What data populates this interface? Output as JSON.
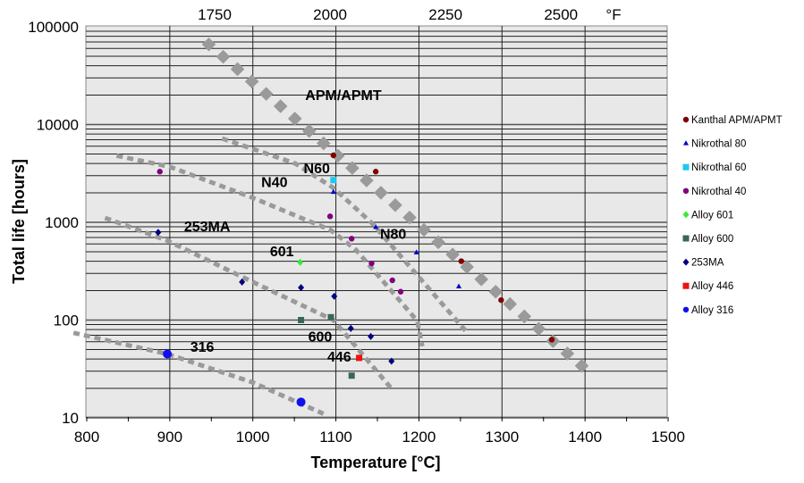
{
  "chart_data": {
    "type": "scatter",
    "title": "",
    "xlabel": "Temperature [°C]",
    "ylabel": "Total life [hours]",
    "xlim": [
      800,
      1500
    ],
    "ylim": [
      10,
      100000
    ],
    "yscale": "log",
    "grid": true,
    "x_ticks": [
      "800",
      "900",
      "1000",
      "1100",
      "1200",
      "1300",
      "1400",
      "1500"
    ],
    "y_ticks": [
      "10",
      "100",
      "1000",
      "10000",
      "100000"
    ],
    "secondary_x": {
      "unit_label": "°F",
      "ticks": [
        {
          "label": "1750",
          "celsius": 954
        },
        {
          "label": "2000",
          "celsius": 1093
        },
        {
          "label": "2250",
          "celsius": 1232
        },
        {
          "label": "2500",
          "celsius": 1371
        }
      ]
    },
    "legend_position": "right",
    "series": [
      {
        "name": "Kanthal APM/APMT",
        "color": "#800000",
        "marker": "circle",
        "points": [
          [
            1097,
            4840
          ],
          [
            1148,
            3300
          ],
          [
            1251,
            400
          ],
          [
            1299,
            160
          ],
          [
            1360,
            63
          ]
        ]
      },
      {
        "name": "Nikrothal 80",
        "color": "#0000cc",
        "marker": "triangle",
        "points": [
          [
            1097,
            2040
          ],
          [
            1148,
            890
          ],
          [
            1197,
            490
          ],
          [
            1248,
            220
          ]
        ]
      },
      {
        "name": "Nikrothal 60",
        "color": "#1ec8f0",
        "marker": "square",
        "points": [
          [
            1097,
            2700
          ]
        ]
      },
      {
        "name": "Nikrothal 40",
        "color": "#800080",
        "marker": "circle",
        "points": [
          [
            888,
            3300
          ],
          [
            1093,
            1150
          ],
          [
            1119,
            680
          ],
          [
            1143,
            380
          ],
          [
            1168,
            255
          ],
          [
            1178,
            195
          ]
        ]
      },
      {
        "name": "Alloy 601",
        "color": "#33ee33",
        "marker": "diamond",
        "points": [
          [
            1057,
            390
          ]
        ]
      },
      {
        "name": "Alloy 600",
        "color": "#3a6658",
        "marker": "square",
        "points": [
          [
            1058,
            100
          ],
          [
            1094,
            107
          ],
          [
            1119,
            27
          ]
        ]
      },
      {
        "name": "253MA",
        "color": "#000080",
        "marker": "diamond",
        "points": [
          [
            886,
            790
          ],
          [
            987,
            245
          ],
          [
            1058,
            215
          ],
          [
            1098,
            175
          ],
          [
            1118,
            82
          ],
          [
            1142,
            68
          ],
          [
            1167,
            38
          ]
        ]
      },
      {
        "name": "Alloy 446",
        "color": "#ee1111",
        "marker": "square",
        "points": [
          [
            1128,
            41
          ]
        ]
      },
      {
        "name": "Alloy 316",
        "color": "#1010ee",
        "marker": "bigcircle",
        "points": [
          [
            897,
            45
          ],
          [
            1058,
            14.5
          ]
        ]
      }
    ],
    "trend_lines": [
      {
        "name": "APM/APMT",
        "style": "diamonds",
        "points": [
          [
            947,
            66000
          ],
          [
            1396,
            34
          ]
        ]
      },
      {
        "name": "N60",
        "style": "dashed",
        "points": [
          [
            963,
            7200
          ],
          [
            1051,
            4000
          ],
          [
            1097,
            2250
          ],
          [
            1144,
            970
          ],
          [
            1256,
            78
          ]
        ]
      },
      {
        "name": "N40",
        "style": "dashed",
        "points": [
          [
            836,
            4800
          ],
          [
            900,
            3700
          ],
          [
            1000,
            1780
          ],
          [
            1094,
            830
          ],
          [
            1124,
            525
          ],
          [
            1198,
            98
          ],
          [
            1204,
            54
          ]
        ]
      },
      {
        "name": "253MA",
        "style": "dashed",
        "points": [
          [
            822,
            1110
          ],
          [
            897,
            650
          ],
          [
            1000,
            245
          ],
          [
            1097,
            100
          ],
          [
            1169,
            19
          ]
        ]
      },
      {
        "name": "316",
        "style": "dashed",
        "points": [
          [
            784,
            74
          ],
          [
            897,
            45
          ],
          [
            1000,
            23
          ],
          [
            1085,
            11
          ]
        ]
      }
    ],
    "annotations": [
      {
        "text": "APM/APMT",
        "x": 1109,
        "y": 19500
      },
      {
        "text": "N60",
        "x": 1077,
        "y": 3470
      },
      {
        "text": "N40",
        "x": 1026,
        "y": 2500
      },
      {
        "text": "N80",
        "x": 1169,
        "y": 740
      },
      {
        "text": "253MA",
        "x": 945,
        "y": 890
      },
      {
        "text": "601",
        "x": 1035,
        "y": 490
      },
      {
        "text": "316",
        "x": 939,
        "y": 52
      },
      {
        "text": "600",
        "x": 1081,
        "y": 66
      },
      {
        "text": "446",
        "x": 1104,
        "y": 41
      }
    ]
  }
}
